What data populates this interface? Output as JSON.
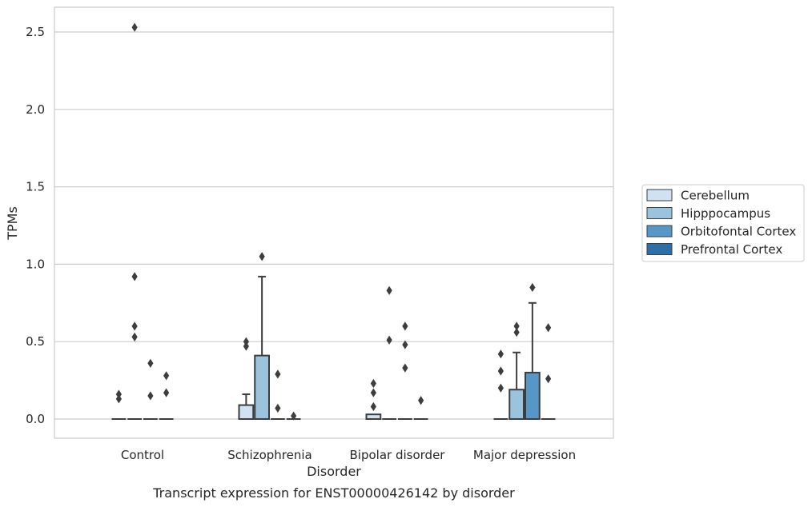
{
  "chart_data": {
    "type": "box",
    "caption": "Transcript expression for ENST00000426142 by disorder",
    "xlabel": "Disorder",
    "ylabel": "TPMs",
    "ylim": [
      -0.12,
      2.66
    ],
    "yticks": [
      0.0,
      0.5,
      1.0,
      1.5,
      2.0,
      2.5
    ],
    "ytick_labels": [
      "0.0",
      "0.5",
      "1.0",
      "1.5",
      "2.0",
      "2.5"
    ],
    "grid": "horizontal",
    "legend_position": "right",
    "categories": [
      "Control",
      "Schizophrenia",
      "Bipolar disorder",
      "Major depression"
    ],
    "series": [
      {
        "name": "Cerebellum",
        "color": "#d0e1f2",
        "boxes": [
          {
            "q1": 0,
            "median": 0,
            "q3": 0,
            "whisker_low": 0,
            "whisker_high": 0,
            "outliers": [
              0.13,
              0.16
            ]
          },
          {
            "q1": 0,
            "median": 0,
            "q3": 0.09,
            "whisker_low": 0,
            "whisker_high": 0.16,
            "outliers": [
              0.47,
              0.5
            ]
          },
          {
            "q1": 0,
            "median": 0,
            "q3": 0.03,
            "whisker_low": 0,
            "whisker_high": 0.03,
            "outliers": [
              0.08,
              0.17,
              0.23
            ]
          },
          {
            "q1": 0,
            "median": 0,
            "q3": 0,
            "whisker_low": 0,
            "whisker_high": 0,
            "outliers": [
              0.2,
              0.31,
              0.42
            ]
          }
        ]
      },
      {
        "name": "Hipppocampus",
        "color": "#9ac4de",
        "boxes": [
          {
            "q1": 0,
            "median": 0,
            "q3": 0,
            "whisker_low": 0,
            "whisker_high": 0,
            "outliers": [
              0.53,
              0.6,
              0.92
            ]
          },
          {
            "q1": 0,
            "median": 0,
            "q3": 0.41,
            "whisker_low": 0,
            "whisker_high": 0.92,
            "outliers": [
              1.05
            ]
          },
          {
            "q1": 0,
            "median": 0,
            "q3": 0,
            "whisker_low": 0,
            "whisker_high": 0,
            "outliers": [
              0.51,
              0.83
            ]
          },
          {
            "q1": 0,
            "median": 0,
            "q3": 0.19,
            "whisker_low": 0,
            "whisker_high": 0.43,
            "outliers": [
              0.56,
              0.6
            ]
          }
        ]
      },
      {
        "name": "Orbitofontal Cortex",
        "color": "#5598c7",
        "boxes": [
          {
            "q1": 0,
            "median": 0,
            "q3": 0,
            "whisker_low": 0,
            "whisker_high": 0,
            "outliers": [
              0.15,
              0.36
            ]
          },
          {
            "q1": 0,
            "median": 0,
            "q3": 0,
            "whisker_low": 0,
            "whisker_high": 0,
            "outliers": [
              0.07,
              0.29
            ]
          },
          {
            "q1": 0,
            "median": 0,
            "q3": 0,
            "whisker_low": 0,
            "whisker_high": 0,
            "outliers": [
              0.33,
              0.48,
              0.6
            ]
          },
          {
            "q1": 0,
            "median": 0,
            "q3": 0.3,
            "whisker_low": 0,
            "whisker_high": 0.75,
            "outliers": [
              0.85
            ]
          }
        ]
      },
      {
        "name": "Prefrontal Cortex",
        "color": "#2e6fa8",
        "boxes": [
          {
            "q1": 0,
            "median": 0,
            "q3": 0,
            "whisker_low": 0,
            "whisker_high": 0,
            "outliers": [
              0.17,
              0.28
            ]
          },
          {
            "q1": 0,
            "median": 0,
            "q3": 0,
            "whisker_low": 0,
            "whisker_high": 0,
            "outliers": [
              0.02
            ]
          },
          {
            "q1": 0,
            "median": 0,
            "q3": 0,
            "whisker_low": 0,
            "whisker_high": 0,
            "outliers": [
              0.12
            ]
          },
          {
            "q1": 0,
            "median": 0,
            "q3": 0,
            "whisker_low": 0,
            "whisker_high": 0,
            "outliers": [
              0.26,
              0.59
            ]
          }
        ]
      }
    ],
    "extra_outliers": [
      {
        "category": "Control",
        "series": "Hipppocampus",
        "value": 2.53
      }
    ]
  }
}
